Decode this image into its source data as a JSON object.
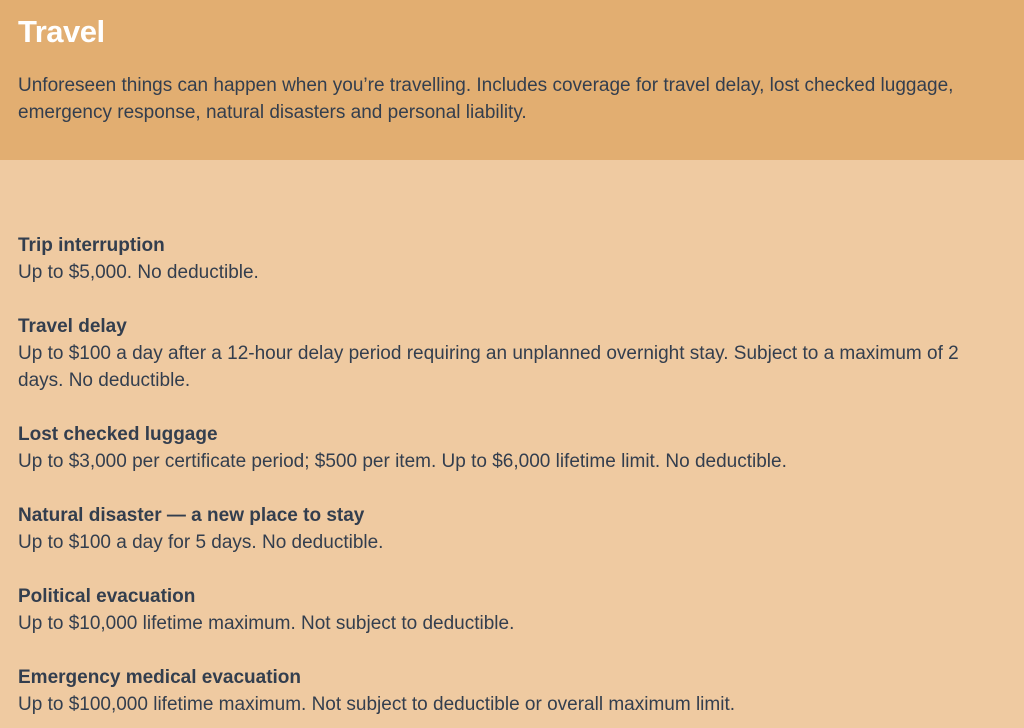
{
  "header": {
    "title": "Travel",
    "description": "Unforeseen things can happen when you’re travelling. Includes coverage for travel delay, lost checked luggage, emergency response, natural disasters and personal liability."
  },
  "coverages": [
    {
      "name": "Trip interruption",
      "detail": "Up to $5,000. No deductible."
    },
    {
      "name": "Travel delay",
      "detail": "Up to $100 a day after a 12-hour delay period requiring an unplanned overnight stay. Subject to a maximum of 2 days. No deductible."
    },
    {
      "name": "Lost checked luggage",
      "detail": "Up to $3,000 per certificate period; $500 per item. Up to $6,000 lifetime limit. No deductible."
    },
    {
      "name": "Natural disaster — a new place to stay",
      "detail": "Up to $100 a day for 5 days. No deductible."
    },
    {
      "name": "Political evacuation",
      "detail": "Up to $10,000 lifetime maximum. Not subject to deductible."
    },
    {
      "name": "Emergency medical evacuation",
      "detail": "Up to $100,000 lifetime maximum. Not subject to deductible or overall maximum limit."
    }
  ],
  "colors": {
    "header_bg": "#e2ae71",
    "body_bg": "#efcaa1",
    "text": "#333e4e",
    "title": "#ffffff"
  }
}
